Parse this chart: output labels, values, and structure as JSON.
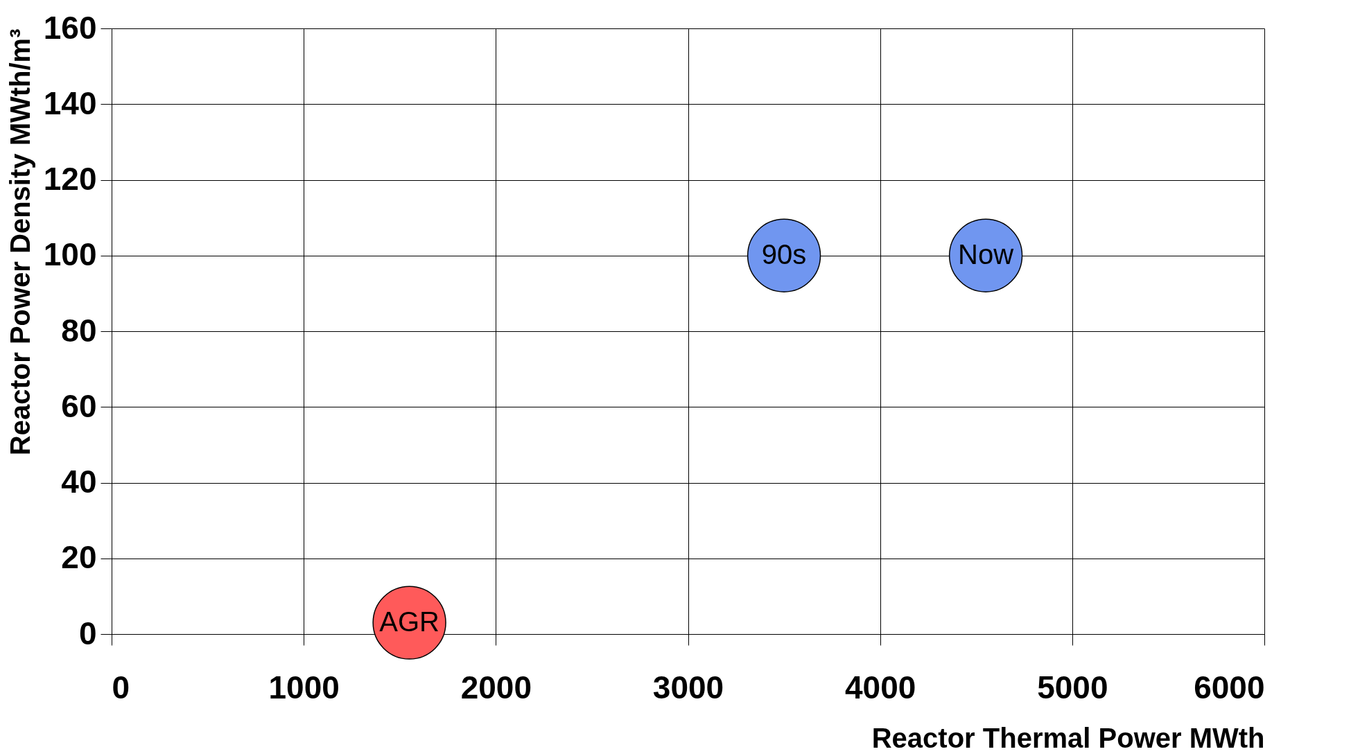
{
  "chart_data": {
    "type": "scatter",
    "xlabel": "Reactor Thermal Power MWth",
    "ylabel": "Reactor Power Density MWth/m³",
    "xlim": [
      0,
      6000
    ],
    "xticks": [
      0,
      1000,
      2000,
      3000,
      4000,
      5000,
      6000
    ],
    "ylim": [
      0,
      160
    ],
    "yticks": [
      0,
      20,
      40,
      60,
      80,
      100,
      120,
      140,
      160
    ],
    "grid": true,
    "x": [
      1550,
      3500,
      4550
    ],
    "values": [
      3,
      100,
      100
    ],
    "colors": [
      "#ff5a5a",
      "#7096f0",
      "#7096f0"
    ],
    "annotations": [
      {
        "text": "AGR",
        "x": 1550,
        "y": 3
      },
      {
        "text": "90s",
        "x": 3500,
        "y": 100
      },
      {
        "text": "Now",
        "x": 4550,
        "y": 100
      }
    ]
  }
}
